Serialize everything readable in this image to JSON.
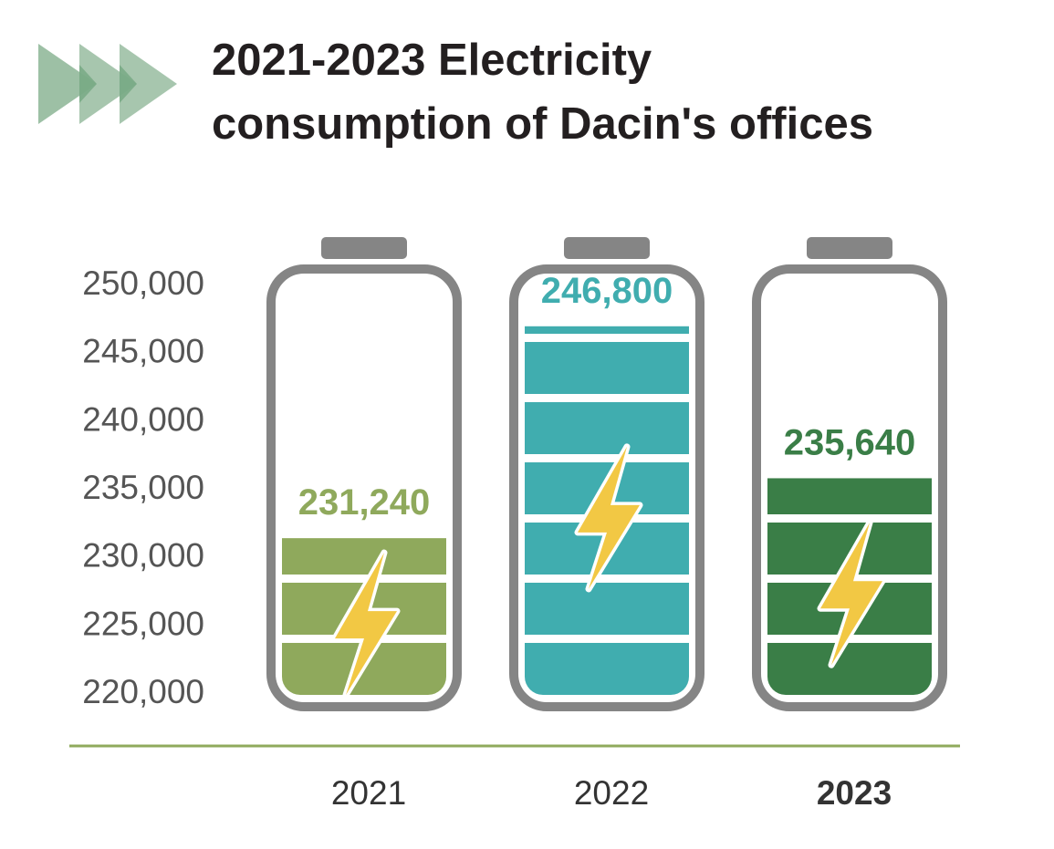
{
  "title_lines": [
    "2021-2023 Electricity",
    "consumption of Dacin's offices"
  ],
  "colors": {
    "title": "#231f20",
    "arrows": "#9dc0a5",
    "arrows_overlap": "#5f9a6f",
    "battery_outline": "#858585",
    "axis_line": "#8faa5c",
    "tick_text": "#555555",
    "bolt_fill": "#f2c844"
  },
  "chart_data": {
    "type": "bar",
    "title": "2021-2023 Electricity consumption of Dacin's offices",
    "categories": [
      "2021",
      "2022",
      "2023"
    ],
    "values": [
      231240,
      246800,
      235640
    ],
    "value_labels": [
      "231,240",
      "246,800",
      "235,640"
    ],
    "yticks": [
      "250,000",
      "245,000",
      "240,000",
      "235,000",
      "230,000",
      "225,000",
      "220,000"
    ],
    "ytick_values": [
      250000,
      245000,
      240000,
      235000,
      230000,
      225000,
      220000
    ],
    "ylim": [
      220000,
      250000
    ],
    "bar_colors": [
      "#8fa95c",
      "#40adaf",
      "#3a7e47"
    ],
    "highlighted_category": "2023",
    "highlight_color": "#3a7e47",
    "xlabel": "",
    "ylabel": "",
    "grid": false
  }
}
